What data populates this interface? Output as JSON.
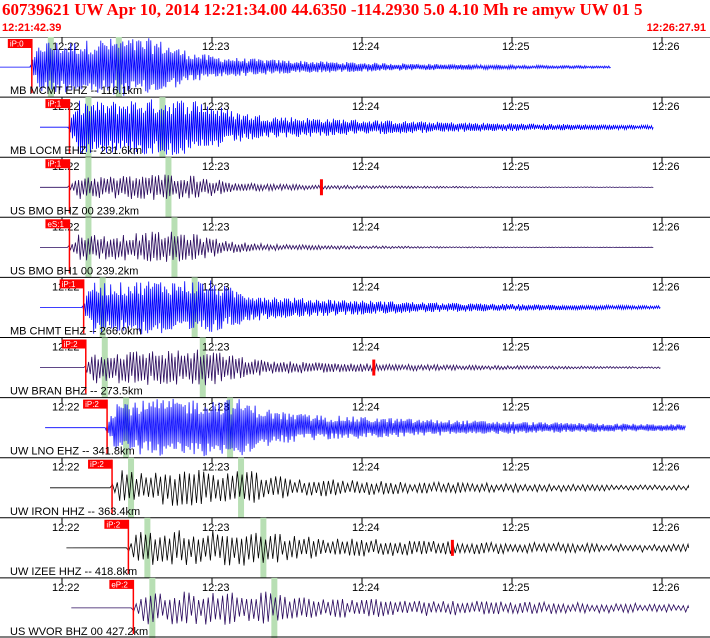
{
  "header": {
    "title": "60739621 UW Apr 10, 2014 12:21:34.00   44.6350 -114.2930  5.0 4.10 Mh re amyw UW 01   5",
    "start_time": "12:21:42.39",
    "end_time": "12:26:27.91"
  },
  "time_labels": [
    "12:22",
    "12:23",
    "12:24",
    "12:25",
    "12:26"
  ],
  "colors": {
    "header_text": "#ff0000",
    "trace_blue": "#0000ff",
    "trace_purple": "#2a0a5e",
    "trace_black": "#000000",
    "pick_flag": "#ff0000",
    "grid_line": "#000000",
    "window_band": "#b8dfb4"
  },
  "traces": [
    {
      "label": "MB MCMT EHZ -- 116.1km",
      "pick": "iP:0",
      "color": "blue",
      "t0": 0.042,
      "amp": 0.48,
      "end": 0.86,
      "decay": 3.2,
      "freq": "high",
      "s_mark": false
    },
    {
      "label": "MB LOCM EHZ -- 231.6km",
      "pick": "iP:1",
      "color": "blue",
      "t0": 0.095,
      "amp": 0.47,
      "end": 0.92,
      "decay": 2.6,
      "freq": "high",
      "s_mark": false
    },
    {
      "label": "US BMO BHZ 00 239.2km",
      "pick": "iP:1",
      "color": "purple",
      "t0": 0.095,
      "amp": 0.22,
      "end": 0.92,
      "decay": 4.0,
      "freq": "mid",
      "s_mark": true
    },
    {
      "label": "US BMO BH1 00 239.2km",
      "pick": "eS:1",
      "color": "purple",
      "t0": 0.095,
      "amp": 0.26,
      "end": 0.92,
      "decay": 4.5,
      "freq": "mid",
      "s_mark": false
    },
    {
      "label": "MB CHMT EHZ -- 266.0km",
      "pick": "iP:1",
      "color": "blue",
      "t0": 0.115,
      "amp": 0.46,
      "end": 0.93,
      "decay": 2.8,
      "freq": "high",
      "s_mark": false
    },
    {
      "label": "UW BRAN BHZ -- 273.5km",
      "pick": "iP:2",
      "color": "purple",
      "t0": 0.118,
      "amp": 0.3,
      "end": 0.93,
      "decay": 3.0,
      "freq": "mid",
      "s_mark": true
    },
    {
      "label": "UW LNO EHZ -- 341.8km",
      "pick": "iP:2",
      "color": "blue",
      "t0": 0.148,
      "amp": 0.48,
      "end": 0.965,
      "decay": 2.2,
      "freq": "high",
      "s_mark": false
    },
    {
      "label": "UW IRON HHZ -- 363.4km",
      "pick": "iP:2",
      "color": "black",
      "t0": 0.155,
      "amp": 0.3,
      "end": 0.97,
      "decay": 2.0,
      "freq": "low",
      "s_mark": false
    },
    {
      "label": "UW IZEE HHZ -- 418.8km",
      "pick": "iP:2",
      "color": "black",
      "t0": 0.178,
      "amp": 0.3,
      "end": 0.97,
      "decay": 1.6,
      "freq": "low",
      "s_mark": true
    },
    {
      "label": "US WVOR BHZ 00 427.2km",
      "pick": "eP:2",
      "color": "purple",
      "t0": 0.185,
      "amp": 0.28,
      "end": 0.97,
      "decay": 1.4,
      "freq": "low",
      "s_mark": false
    }
  ]
}
